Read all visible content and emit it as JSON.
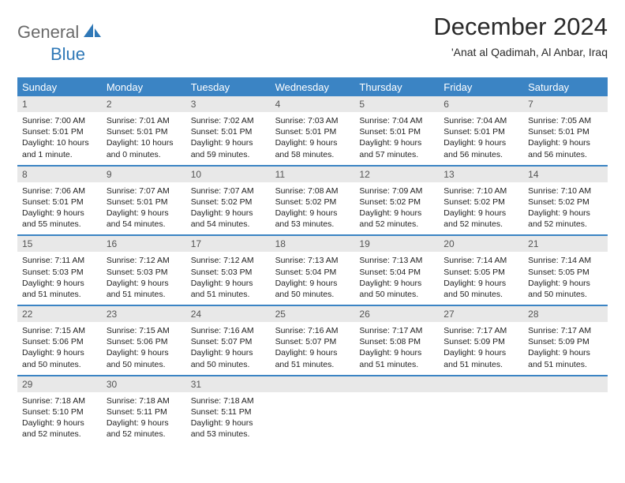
{
  "brand": {
    "text_general": "General",
    "text_blue": "Blue",
    "logo_fill": "#2f78b7"
  },
  "header": {
    "title": "December 2024",
    "location": "'Anat al Qadimah, Al Anbar, Iraq"
  },
  "colors": {
    "header_bg": "#3b84c4",
    "header_text": "#ffffff",
    "daynum_bg": "#e8e8e8",
    "daynum_text": "#555555",
    "row_divider": "#3b84c4",
    "body_text": "#222222",
    "page_bg": "#ffffff"
  },
  "day_names": [
    "Sunday",
    "Monday",
    "Tuesday",
    "Wednesday",
    "Thursday",
    "Friday",
    "Saturday"
  ],
  "weeks": [
    [
      {
        "n": "1",
        "sr": "Sunrise: 7:00 AM",
        "ss": "Sunset: 5:01 PM",
        "d1": "Daylight: 10 hours",
        "d2": "and 1 minute."
      },
      {
        "n": "2",
        "sr": "Sunrise: 7:01 AM",
        "ss": "Sunset: 5:01 PM",
        "d1": "Daylight: 10 hours",
        "d2": "and 0 minutes."
      },
      {
        "n": "3",
        "sr": "Sunrise: 7:02 AM",
        "ss": "Sunset: 5:01 PM",
        "d1": "Daylight: 9 hours",
        "d2": "and 59 minutes."
      },
      {
        "n": "4",
        "sr": "Sunrise: 7:03 AM",
        "ss": "Sunset: 5:01 PM",
        "d1": "Daylight: 9 hours",
        "d2": "and 58 minutes."
      },
      {
        "n": "5",
        "sr": "Sunrise: 7:04 AM",
        "ss": "Sunset: 5:01 PM",
        "d1": "Daylight: 9 hours",
        "d2": "and 57 minutes."
      },
      {
        "n": "6",
        "sr": "Sunrise: 7:04 AM",
        "ss": "Sunset: 5:01 PM",
        "d1": "Daylight: 9 hours",
        "d2": "and 56 minutes."
      },
      {
        "n": "7",
        "sr": "Sunrise: 7:05 AM",
        "ss": "Sunset: 5:01 PM",
        "d1": "Daylight: 9 hours",
        "d2": "and 56 minutes."
      }
    ],
    [
      {
        "n": "8",
        "sr": "Sunrise: 7:06 AM",
        "ss": "Sunset: 5:01 PM",
        "d1": "Daylight: 9 hours",
        "d2": "and 55 minutes."
      },
      {
        "n": "9",
        "sr": "Sunrise: 7:07 AM",
        "ss": "Sunset: 5:01 PM",
        "d1": "Daylight: 9 hours",
        "d2": "and 54 minutes."
      },
      {
        "n": "10",
        "sr": "Sunrise: 7:07 AM",
        "ss": "Sunset: 5:02 PM",
        "d1": "Daylight: 9 hours",
        "d2": "and 54 minutes."
      },
      {
        "n": "11",
        "sr": "Sunrise: 7:08 AM",
        "ss": "Sunset: 5:02 PM",
        "d1": "Daylight: 9 hours",
        "d2": "and 53 minutes."
      },
      {
        "n": "12",
        "sr": "Sunrise: 7:09 AM",
        "ss": "Sunset: 5:02 PM",
        "d1": "Daylight: 9 hours",
        "d2": "and 52 minutes."
      },
      {
        "n": "13",
        "sr": "Sunrise: 7:10 AM",
        "ss": "Sunset: 5:02 PM",
        "d1": "Daylight: 9 hours",
        "d2": "and 52 minutes."
      },
      {
        "n": "14",
        "sr": "Sunrise: 7:10 AM",
        "ss": "Sunset: 5:02 PM",
        "d1": "Daylight: 9 hours",
        "d2": "and 52 minutes."
      }
    ],
    [
      {
        "n": "15",
        "sr": "Sunrise: 7:11 AM",
        "ss": "Sunset: 5:03 PM",
        "d1": "Daylight: 9 hours",
        "d2": "and 51 minutes."
      },
      {
        "n": "16",
        "sr": "Sunrise: 7:12 AM",
        "ss": "Sunset: 5:03 PM",
        "d1": "Daylight: 9 hours",
        "d2": "and 51 minutes."
      },
      {
        "n": "17",
        "sr": "Sunrise: 7:12 AM",
        "ss": "Sunset: 5:03 PM",
        "d1": "Daylight: 9 hours",
        "d2": "and 51 minutes."
      },
      {
        "n": "18",
        "sr": "Sunrise: 7:13 AM",
        "ss": "Sunset: 5:04 PM",
        "d1": "Daylight: 9 hours",
        "d2": "and 50 minutes."
      },
      {
        "n": "19",
        "sr": "Sunrise: 7:13 AM",
        "ss": "Sunset: 5:04 PM",
        "d1": "Daylight: 9 hours",
        "d2": "and 50 minutes."
      },
      {
        "n": "20",
        "sr": "Sunrise: 7:14 AM",
        "ss": "Sunset: 5:05 PM",
        "d1": "Daylight: 9 hours",
        "d2": "and 50 minutes."
      },
      {
        "n": "21",
        "sr": "Sunrise: 7:14 AM",
        "ss": "Sunset: 5:05 PM",
        "d1": "Daylight: 9 hours",
        "d2": "and 50 minutes."
      }
    ],
    [
      {
        "n": "22",
        "sr": "Sunrise: 7:15 AM",
        "ss": "Sunset: 5:06 PM",
        "d1": "Daylight: 9 hours",
        "d2": "and 50 minutes."
      },
      {
        "n": "23",
        "sr": "Sunrise: 7:15 AM",
        "ss": "Sunset: 5:06 PM",
        "d1": "Daylight: 9 hours",
        "d2": "and 50 minutes."
      },
      {
        "n": "24",
        "sr": "Sunrise: 7:16 AM",
        "ss": "Sunset: 5:07 PM",
        "d1": "Daylight: 9 hours",
        "d2": "and 50 minutes."
      },
      {
        "n": "25",
        "sr": "Sunrise: 7:16 AM",
        "ss": "Sunset: 5:07 PM",
        "d1": "Daylight: 9 hours",
        "d2": "and 51 minutes."
      },
      {
        "n": "26",
        "sr": "Sunrise: 7:17 AM",
        "ss": "Sunset: 5:08 PM",
        "d1": "Daylight: 9 hours",
        "d2": "and 51 minutes."
      },
      {
        "n": "27",
        "sr": "Sunrise: 7:17 AM",
        "ss": "Sunset: 5:09 PM",
        "d1": "Daylight: 9 hours",
        "d2": "and 51 minutes."
      },
      {
        "n": "28",
        "sr": "Sunrise: 7:17 AM",
        "ss": "Sunset: 5:09 PM",
        "d1": "Daylight: 9 hours",
        "d2": "and 51 minutes."
      }
    ],
    [
      {
        "n": "29",
        "sr": "Sunrise: 7:18 AM",
        "ss": "Sunset: 5:10 PM",
        "d1": "Daylight: 9 hours",
        "d2": "and 52 minutes."
      },
      {
        "n": "30",
        "sr": "Sunrise: 7:18 AM",
        "ss": "Sunset: 5:11 PM",
        "d1": "Daylight: 9 hours",
        "d2": "and 52 minutes."
      },
      {
        "n": "31",
        "sr": "Sunrise: 7:18 AM",
        "ss": "Sunset: 5:11 PM",
        "d1": "Daylight: 9 hours",
        "d2": "and 53 minutes."
      },
      null,
      null,
      null,
      null
    ]
  ]
}
